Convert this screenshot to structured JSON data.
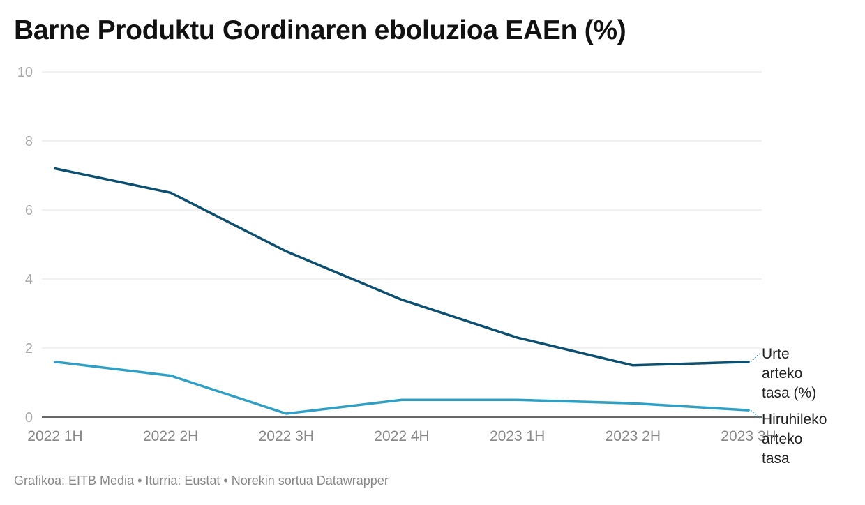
{
  "chart_data": {
    "type": "line",
    "title": "Barne Produktu Gordinaren eboluzioa EAEn (%)",
    "xlabel": "",
    "ylabel": "",
    "categories": [
      "2022 1H",
      "2022 2H",
      "2022 3H",
      "2022 4H",
      "2023 1H",
      "2023 2H",
      "2023 3H"
    ],
    "ylim": [
      0,
      10
    ],
    "yticks": [
      0,
      2,
      4,
      6,
      8,
      10
    ],
    "grid": true,
    "series": [
      {
        "name": "Urte arteko tasa (%)",
        "label_lines": [
          "Urte",
          "arteko",
          "tasa (%)"
        ],
        "color": "#0b4f71",
        "values": [
          7.2,
          6.5,
          4.8,
          3.4,
          2.3,
          1.5,
          1.6
        ]
      },
      {
        "name": "Hiruhileko arteko tasa",
        "label_lines": [
          "Hiruhileko",
          "arteko",
          "tasa"
        ],
        "color": "#2ea0c5",
        "values": [
          1.6,
          1.2,
          0.1,
          0.5,
          0.5,
          0.4,
          0.2
        ]
      }
    ]
  },
  "footer": "Grafikoa: EITB Media • Iturria: Eustat • Norekin sortua Datawrapper"
}
